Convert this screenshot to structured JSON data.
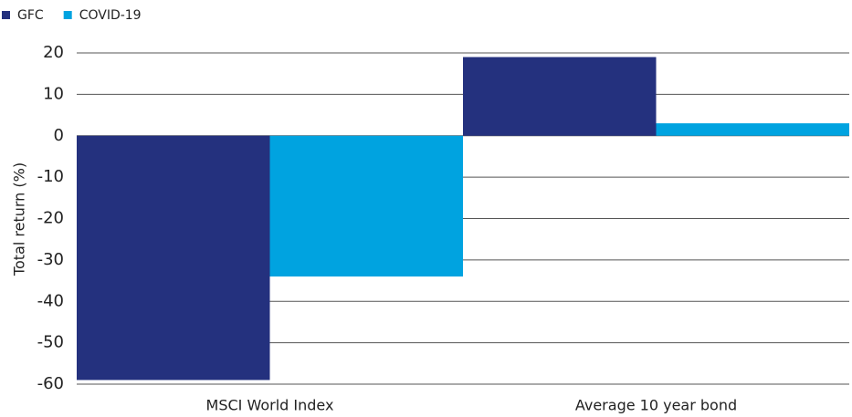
{
  "chart_data": {
    "type": "bar",
    "y_label": "Total return (%)",
    "categories": [
      "MSCI World Index",
      "Average 10 year bond"
    ],
    "series": [
      {
        "name": "GFC",
        "color": "#24317e",
        "values": [
          -59,
          19
        ]
      },
      {
        "name": "COVID-19",
        "color": "#00a3e0",
        "values": [
          -34,
          3
        ]
      }
    ],
    "ylim": [
      -60,
      20
    ],
    "yticks": [
      -60,
      -50,
      -40,
      -30,
      -20,
      -10,
      0,
      10,
      20
    ],
    "grid": true,
    "legend": "top-left"
  }
}
